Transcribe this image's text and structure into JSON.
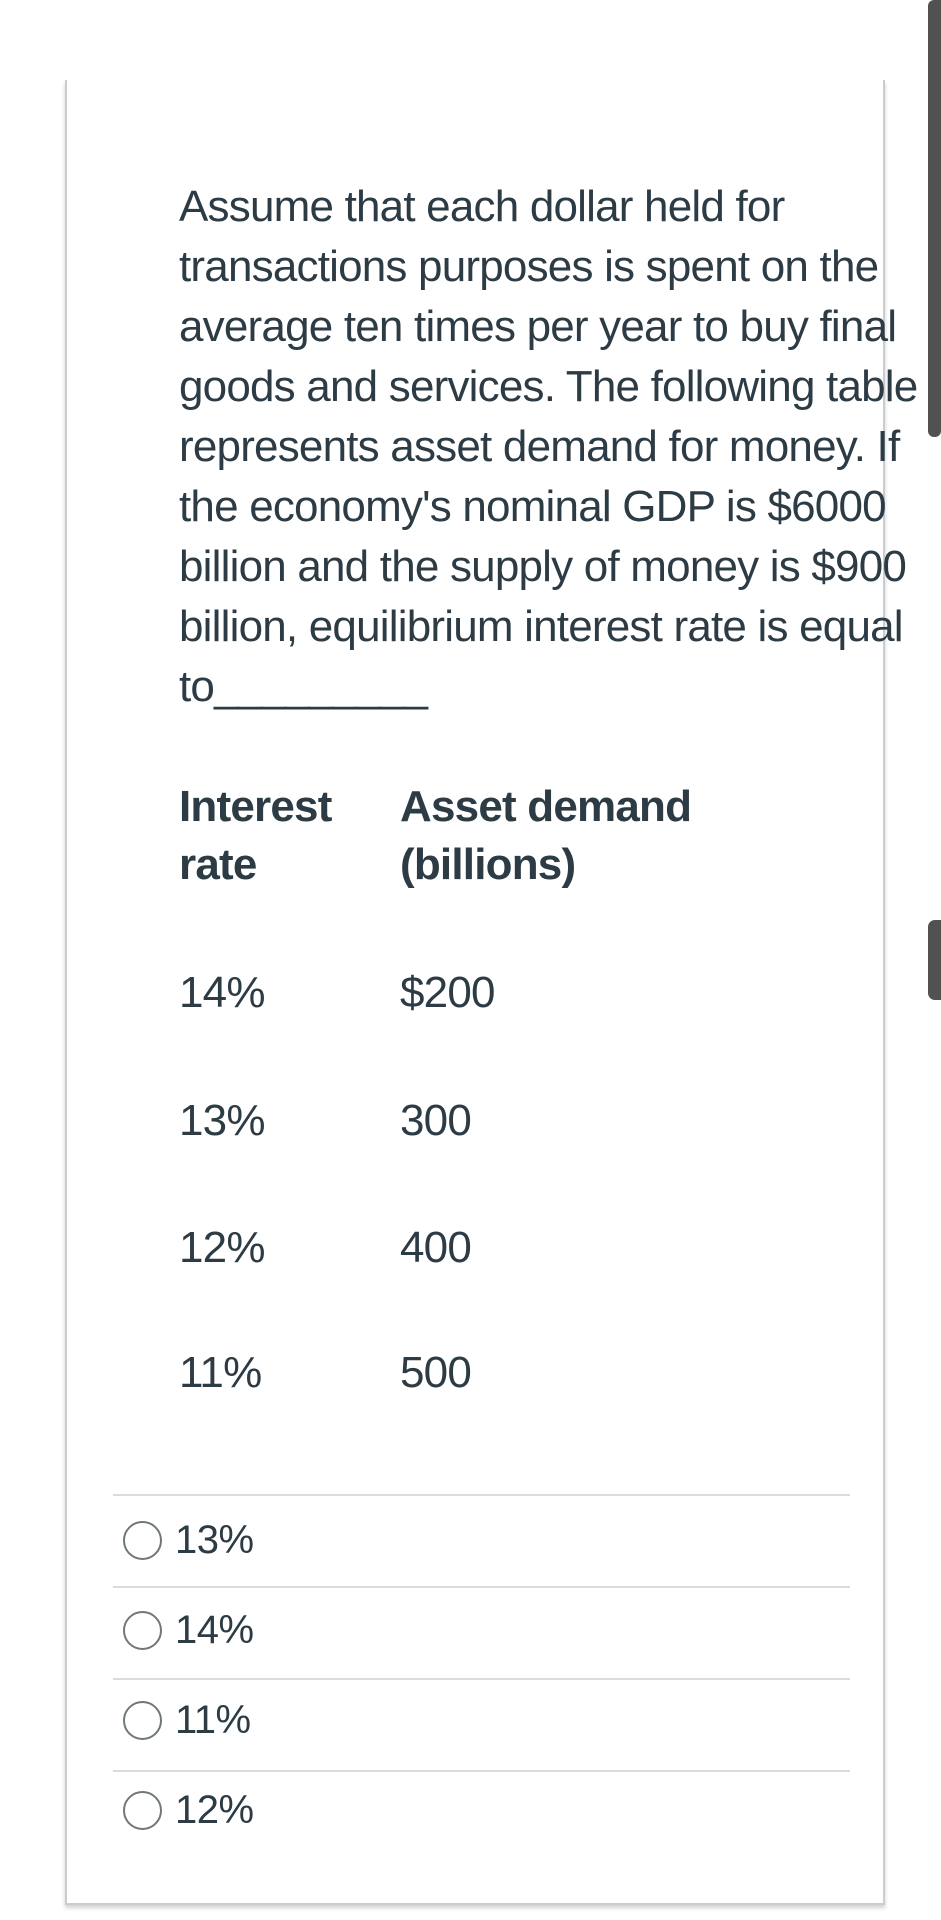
{
  "question": {
    "lines": [
      "Assume that each dollar held for",
      "transactions purposes is spent on the",
      "average ten times per year to buy final",
      "goods and services. The following table",
      "represents asset demand for money. If",
      "the economy's nominal GDP is $6000",
      "billion and the supply of money is $900",
      "billion, equilibrium interest rate is equal",
      "to_________"
    ]
  },
  "table": {
    "headers": {
      "col1_line1": "Interest",
      "col1_line2": "rate",
      "col2_line1": "Asset demand",
      "col2_line2": "(billions)"
    },
    "rows": [
      {
        "rate": "14%",
        "demand": "$200"
      },
      {
        "rate": "13%",
        "demand": "300"
      },
      {
        "rate": "12%",
        "demand": "400"
      },
      {
        "rate": "11%",
        "demand": "500"
      }
    ]
  },
  "options": [
    {
      "label": "13%"
    },
    {
      "label": "14%"
    },
    {
      "label": "11%"
    },
    {
      "label": "12%"
    }
  ],
  "colors": {
    "text": "#2D3B45",
    "card_border": "#C7CDD1",
    "separator": "#D8DCDE",
    "scrollbar": "#515151",
    "radio_border": "#6F777B"
  }
}
